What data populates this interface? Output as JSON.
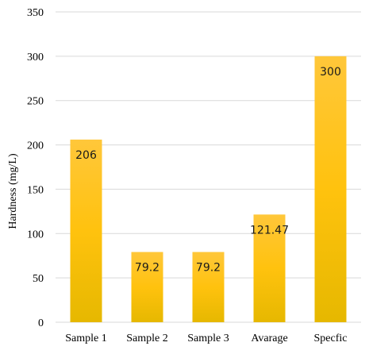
{
  "chart_data": {
    "type": "bar",
    "categories": [
      "Sample 1",
      "Sample 2",
      "Sample 3",
      "Avarage",
      "Specfic"
    ],
    "values": [
      206,
      79.2,
      79.2,
      121.47,
      300
    ],
    "data_labels": [
      "206",
      "79.2",
      "79.2",
      "121.47",
      "300"
    ],
    "ylabel": "Hardness (mg/L)",
    "ylim": [
      0,
      350
    ],
    "yticks": [
      0,
      50,
      100,
      150,
      200,
      250,
      300,
      350
    ],
    "grid": true,
    "legend": "none",
    "colors": {
      "bar_top": "#ffc73a",
      "bar_mid": "#ffc20e",
      "bar_bottom": "#e6b800",
      "gridline": "#d9d9d9"
    }
  }
}
